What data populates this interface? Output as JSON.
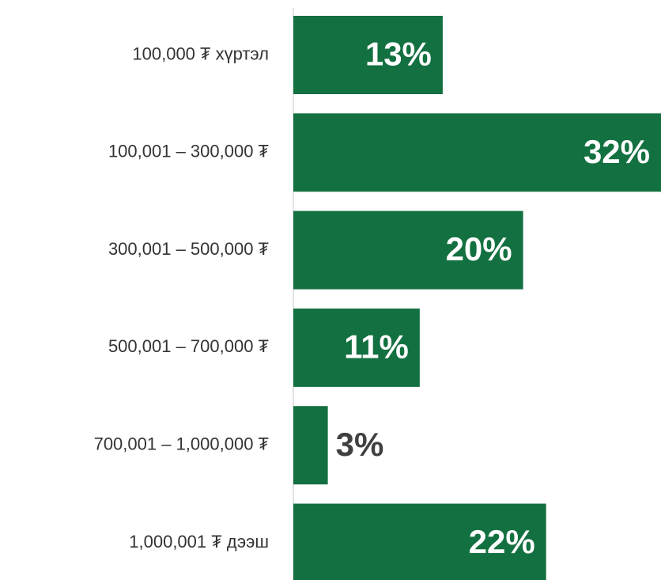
{
  "chart_data": {
    "type": "bar",
    "orientation": "horizontal",
    "categories": [
      "100,000 ₮ хүртэл",
      "100,001 – 300,000 ₮",
      "300,001 – 500,000 ₮",
      "500,001 – 700,000 ₮",
      "700,001 – 1,000,000 ₮",
      "1,000,001 ₮ дээш"
    ],
    "values": [
      13,
      32,
      20,
      11,
      3,
      22
    ],
    "value_labels": [
      "13%",
      "32%",
      "20%",
      "11%",
      "3%",
      "22%"
    ],
    "color": "#137040"
  }
}
